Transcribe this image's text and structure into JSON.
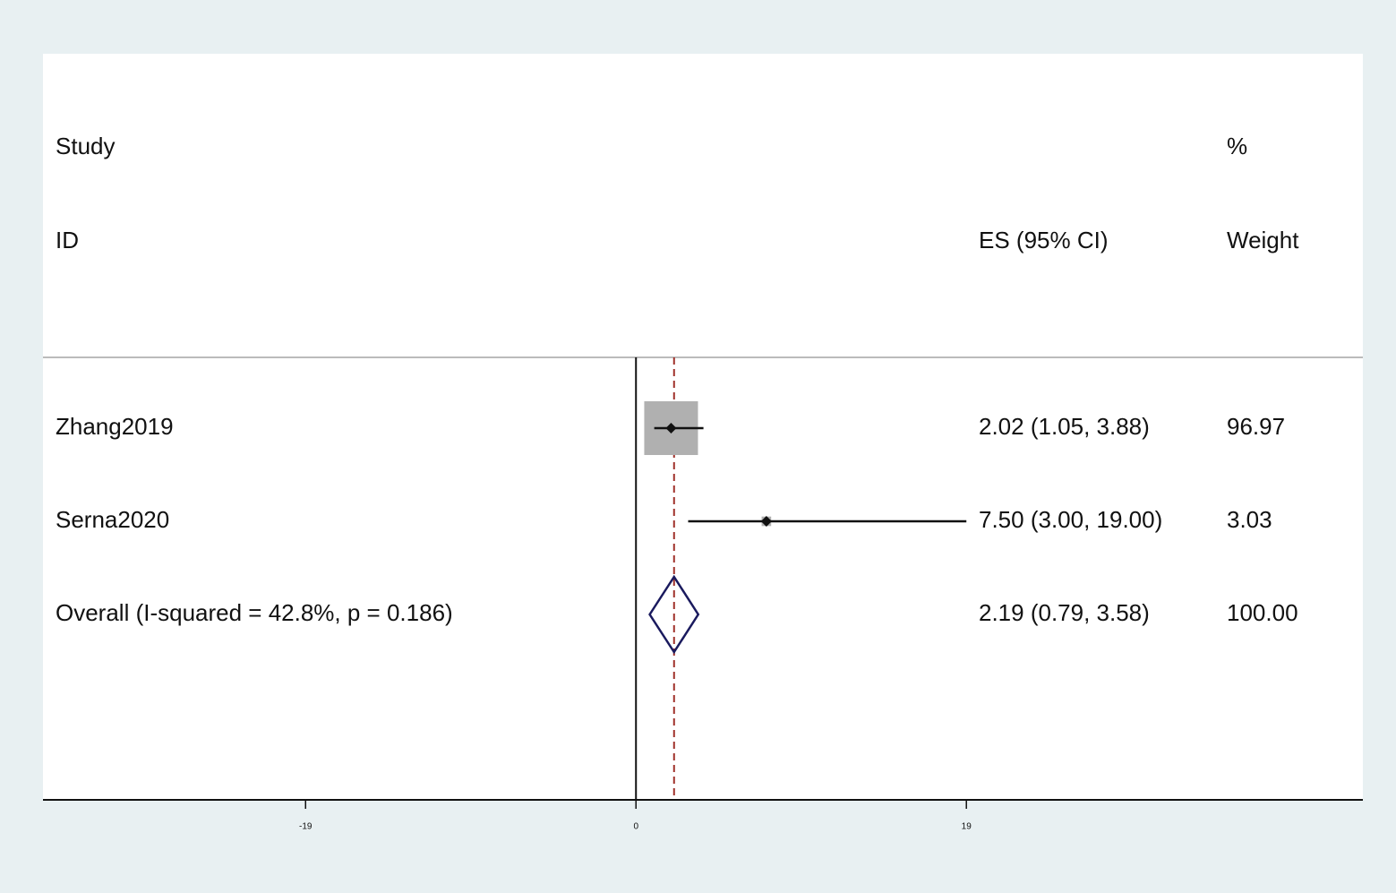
{
  "chart_data": {
    "type": "forest",
    "headers": {
      "study": "Study",
      "id": "ID",
      "es": "ES (95% CI)",
      "pct": "%",
      "weight": "Weight"
    },
    "categories": [
      "Zhang2019",
      "Serna2020",
      "Overall  (I-squared = 42.8%, p = 0.186)"
    ],
    "values": [
      2.02,
      7.5,
      2.19
    ],
    "lower": [
      1.05,
      3.0,
      0.79
    ],
    "upper": [
      3.88,
      19.0,
      3.58
    ],
    "value_labels": [
      "2.02 (1.05, 3.88)",
      "7.50 (3.00, 19.00)",
      "2.19 (0.79, 3.58)"
    ],
    "weights": [
      96.97,
      3.03,
      100
    ],
    "weight_labels": [
      "96.97",
      "3.03",
      "100.00"
    ],
    "overall": 2,
    "null_line": 0,
    "xlim": [
      -34.1,
      41.8
    ],
    "xticks": [
      -19,
      0,
      19
    ],
    "box_color": "#b0b0b0",
    "diamond_color": "#1a1a5e",
    "overall_line_color": "#a0302a"
  }
}
